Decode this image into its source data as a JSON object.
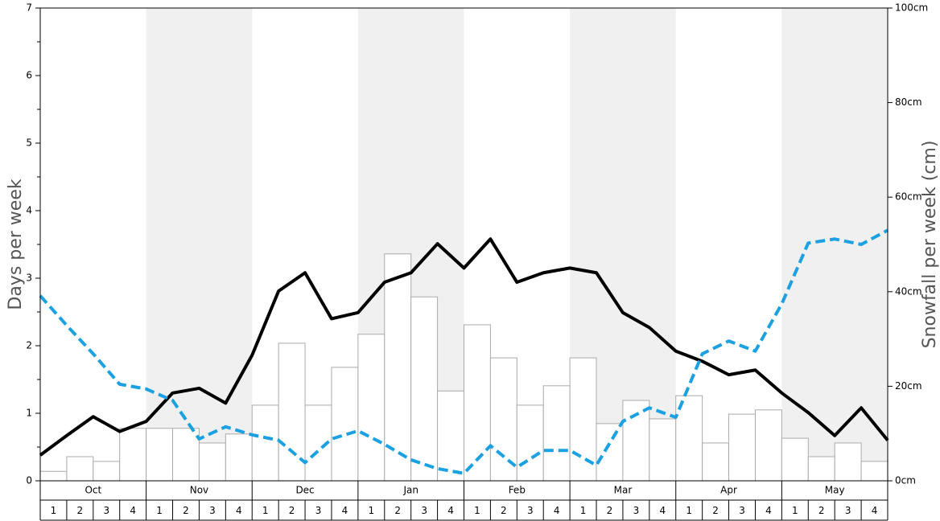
{
  "chart_data": {
    "type": "bar",
    "months": [
      "Oct",
      "Nov",
      "Dec",
      "Jan",
      "Feb",
      "Mar",
      "Apr",
      "May"
    ],
    "week_labels": [
      1,
      2,
      3,
      4
    ],
    "ylabel": "Days per week",
    "y2label": "Snowfall per week (cm)",
    "ylim": [
      0,
      7
    ],
    "yticks": [
      0,
      1,
      2,
      3,
      4,
      5,
      6,
      7
    ],
    "yminorticks": [
      0.5,
      1.5,
      2.5,
      3.5,
      4.5,
      5.5,
      6.5
    ],
    "y2lim": [
      0,
      100
    ],
    "y2ticks": [
      {
        "value": 0,
        "label": "0cm"
      },
      {
        "value": 20,
        "label": "20cm"
      },
      {
        "value": 40,
        "label": "40cm"
      },
      {
        "value": 60,
        "label": "60cm"
      },
      {
        "value": 80,
        "label": "80cm"
      },
      {
        "value": 100,
        "label": "100cm"
      }
    ],
    "shade_color": "#f0f0f0",
    "series": [
      {
        "type": "bar",
        "axis": "y2",
        "color": "#ffffff",
        "edge_color": "#aaaaaa",
        "values": [
          2.0,
          5.1,
          4.1,
          11.1,
          11.1,
          11.1,
          8.0,
          9.9,
          16.0,
          29.1,
          16.0,
          24.0,
          31.0,
          48.0,
          38.9,
          19.0,
          33.0,
          26.0,
          16.0,
          20.1,
          26.0,
          12.1,
          17.0,
          13.1,
          18.0,
          8.0,
          14.1,
          15.0,
          9.0,
          5.1,
          8.0,
          4.1
        ]
      },
      {
        "type": "line",
        "color": "#000000",
        "dashed": false,
        "values": [
          0.38,
          0.67,
          0.95,
          0.73,
          0.88,
          1.3,
          1.37,
          1.15,
          1.86,
          2.81,
          3.08,
          2.4,
          2.49,
          2.94,
          3.08,
          3.51,
          3.15,
          3.58,
          2.94,
          3.08,
          3.15,
          3.08,
          2.49,
          2.27,
          1.92,
          1.77,
          1.57,
          1.64,
          1.3,
          1.01,
          0.67,
          1.08,
          0.6
        ]
      },
      {
        "type": "line",
        "color": "#1ba1e2",
        "dashed": true,
        "values": [
          2.74,
          2.3,
          1.88,
          1.43,
          1.36,
          1.19,
          0.62,
          0.8,
          0.68,
          0.6,
          0.27,
          0.62,
          0.74,
          0.54,
          0.31,
          0.18,
          0.11,
          0.52,
          0.2,
          0.45,
          0.45,
          0.23,
          0.88,
          1.08,
          0.94,
          1.88,
          2.07,
          1.92,
          2.62,
          3.52,
          3.58,
          3.5,
          3.71
        ]
      }
    ]
  }
}
